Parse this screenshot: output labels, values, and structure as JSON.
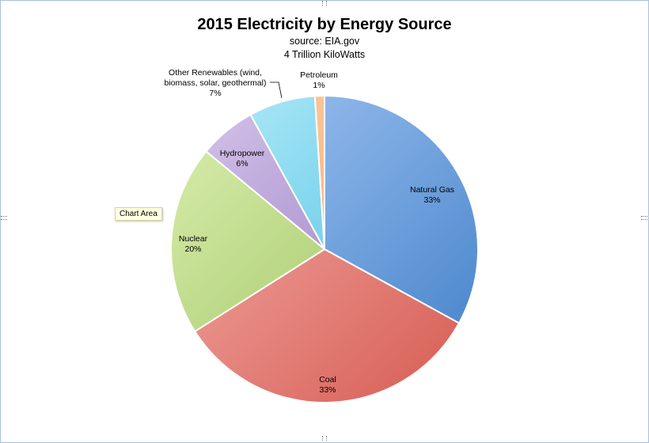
{
  "chart_data": {
    "type": "pie",
    "title": "2015 Electricity by Energy Source",
    "subtitle_lines": [
      "source: EIA.gov",
      "4 Trillion KiloWatts"
    ],
    "slices": [
      {
        "name": "Natural Gas",
        "value": 33,
        "label": "33%",
        "color_light": "#a8c8f4",
        "color_dark": "#3f7fc8",
        "label_lines": [
          "Natural Gas"
        ]
      },
      {
        "name": "Coal",
        "value": 33,
        "label": "33%",
        "color_light": "#f4b4b0",
        "color_dark": "#d65a50",
        "label_lines": [
          "Coal"
        ]
      },
      {
        "name": "Nuclear",
        "value": 20,
        "label": "20%",
        "color_light": "#dcefb0",
        "color_dark": "#93bd56",
        "label_lines": [
          "Nuclear"
        ]
      },
      {
        "name": "Hydropower",
        "value": 6,
        "label": "6%",
        "color_light": "#d8c8ec",
        "color_dark": "#8a6bb8",
        "label_lines": [
          "Hydropower"
        ]
      },
      {
        "name": "Other Renewables (wind, biomass, solar, geothermal)",
        "value": 7,
        "label": "7%",
        "color_light": "#b8ecfa",
        "color_dark": "#38b8dc",
        "label_lines": [
          "Other Renewables (wind,",
          "biomass, solar, geothermal)"
        ]
      },
      {
        "name": "Petroleum",
        "value": 1,
        "label": "1%",
        "color_light": "#fcd0a8",
        "color_dark": "#f0a060",
        "label_lines": [
          "Petroleum"
        ]
      }
    ],
    "start_angle_deg": 0,
    "direction": "clockwise",
    "legend": "none"
  },
  "tooltip": {
    "text": "Chart Area"
  }
}
